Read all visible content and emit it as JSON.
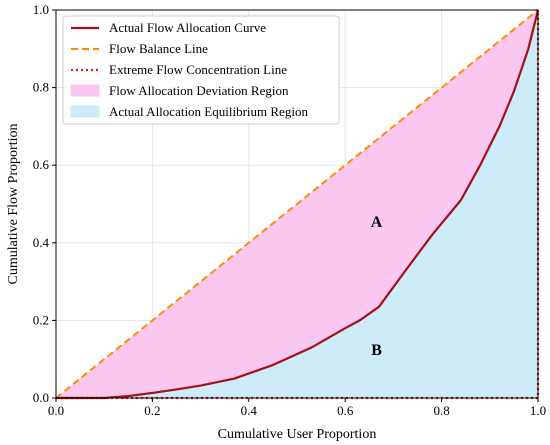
{
  "chart_data": {
    "type": "area",
    "title": "",
    "xlabel": "Cumulative User Proportion",
    "ylabel": "Cumulative Flow Proportion",
    "xlim": [
      0,
      1
    ],
    "ylim": [
      0,
      1
    ],
    "xticks": [
      "0.0",
      "0.2",
      "0.4",
      "0.6",
      "0.8",
      "1.0"
    ],
    "yticks": [
      "0.0",
      "0.2",
      "0.4",
      "0.6",
      "0.8",
      "1.0"
    ],
    "grid": true,
    "legend_position": "top-left",
    "series": [
      {
        "name": "Actual Flow Allocation Curve",
        "style": "solid line",
        "color": "#a50f15",
        "x": [
          0,
          0.1,
          0.15,
          0.2,
          0.25,
          0.3,
          0.37,
          0.45,
          0.53,
          0.6,
          0.63,
          0.67,
          0.72,
          0.78,
          0.84,
          0.88,
          0.92,
          0.95,
          0.98,
          1.0
        ],
        "y": [
          0,
          0,
          0.005,
          0.013,
          0.022,
          0.032,
          0.05,
          0.085,
          0.13,
          0.18,
          0.2,
          0.235,
          0.32,
          0.42,
          0.51,
          0.6,
          0.7,
          0.79,
          0.9,
          1.0
        ]
      },
      {
        "name": "Flow Balance Line",
        "style": "dashed line",
        "color": "#ff8c00",
        "x": [
          0,
          1
        ],
        "y": [
          0,
          1
        ]
      },
      {
        "name": "Extreme Flow Concentration Line",
        "style": "dotted line",
        "color": "#e31a1c",
        "x": [
          0,
          1,
          1
        ],
        "y": [
          0,
          0,
          1
        ]
      },
      {
        "name": "Flow Allocation Deviation Region",
        "style": "filled area",
        "color": "#f9c7ef"
      },
      {
        "name": "Actual Allocation Equilibrium Region",
        "style": "filled area",
        "color": "#cdebf9"
      }
    ],
    "annotations": [
      {
        "text": "A",
        "x": 0.665,
        "y": 0.45
      },
      {
        "text": "B",
        "x": 0.665,
        "y": 0.12
      }
    ]
  }
}
